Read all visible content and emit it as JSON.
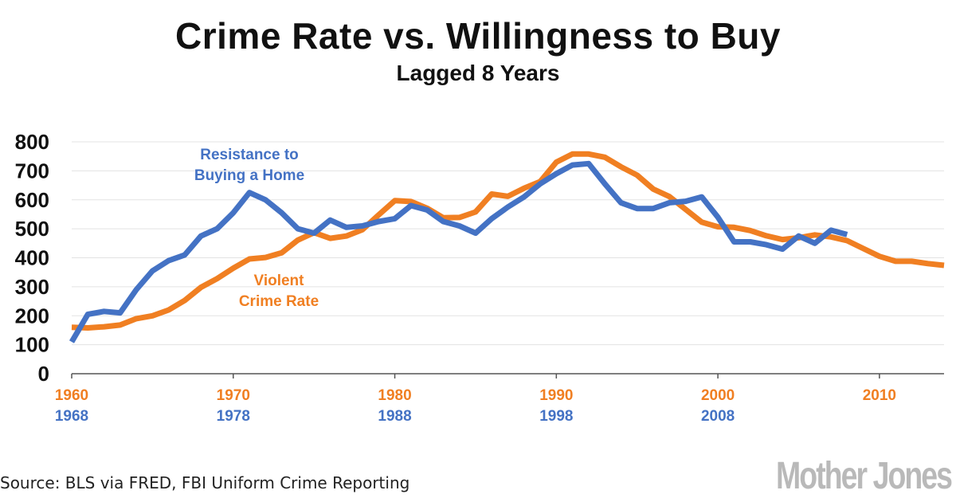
{
  "chart_data": {
    "type": "line",
    "title": "Crime Rate vs. Willingness to Buy",
    "subtitle": "Lagged 8 Years",
    "ylim": [
      0,
      800
    ],
    "yticks": [
      "0",
      "100",
      "200",
      "300",
      "400",
      "500",
      "600",
      "700",
      "800"
    ],
    "xlim": [
      1960,
      2014
    ],
    "xticks_primary": [
      "1960",
      "1970",
      "1980",
      "1990",
      "2000",
      "2010"
    ],
    "xticks_secondary": [
      "1968",
      "1978",
      "1988",
      "1998",
      "2008"
    ],
    "grid": true,
    "series": [
      {
        "name": "Resistance to Buying a Home",
        "label_lines": [
          "Resistance to",
          "Buying a Home"
        ],
        "color": "#4472C4",
        "x": [
          1960,
          1961,
          1962,
          1963,
          1964,
          1965,
          1966,
          1967,
          1968,
          1969,
          1970,
          1971,
          1972,
          1973,
          1974,
          1975,
          1976,
          1977,
          1978,
          1979,
          1980,
          1981,
          1982,
          1983,
          1984,
          1985,
          1986,
          1987,
          1988,
          1989,
          1990,
          1991,
          1992,
          1993,
          1994,
          1995,
          1996,
          1997,
          1998,
          1999,
          2000,
          2001,
          2002,
          2003,
          2004,
          2005,
          2006,
          2007,
          2008
        ],
        "values": [
          110,
          205,
          215,
          210,
          290,
          355,
          390,
          410,
          475,
          500,
          555,
          625,
          600,
          555,
          500,
          485,
          530,
          505,
          510,
          525,
          535,
          580,
          565,
          525,
          510,
          485,
          535,
          575,
          610,
          655,
          690,
          720,
          725,
          655,
          590,
          570,
          570,
          590,
          595,
          610,
          540,
          455,
          455,
          445,
          430,
          475,
          450,
          495,
          480
        ]
      },
      {
        "name": "Violent Crime Rate",
        "label_lines": [
          "Violent",
          "Crime Rate"
        ],
        "color": "#F07F22",
        "x": [
          1960,
          1961,
          1962,
          1963,
          1964,
          1965,
          1966,
          1967,
          1968,
          1969,
          1970,
          1971,
          1972,
          1973,
          1974,
          1975,
          1976,
          1977,
          1978,
          1979,
          1980,
          1981,
          1982,
          1983,
          1984,
          1985,
          1986,
          1987,
          1988,
          1989,
          1990,
          1991,
          1992,
          1993,
          1994,
          1995,
          1996,
          1997,
          1998,
          1999,
          2000,
          2001,
          2002,
          2003,
          2004,
          2005,
          2006,
          2007,
          2008,
          2009,
          2010,
          2011,
          2012,
          2013,
          2014
        ],
        "values": [
          160,
          158,
          162,
          168,
          190,
          200,
          220,
          253,
          298,
          328,
          364,
          396,
          401,
          417,
          461,
          487,
          467,
          475,
          497,
          548,
          597,
          594,
          571,
          538,
          539,
          558,
          620,
          612,
          640,
          663,
          730,
          758,
          758,
          747,
          714,
          685,
          637,
          611,
          567,
          523,
          507,
          505,
          494,
          476,
          463,
          469,
          479,
          472,
          459,
          432,
          405,
          388,
          388,
          380,
          374
        ]
      }
    ]
  },
  "footer": {
    "source": "Source: BLS via FRED, FBI Uniform Crime Reporting",
    "logo": "Mother Jones"
  }
}
